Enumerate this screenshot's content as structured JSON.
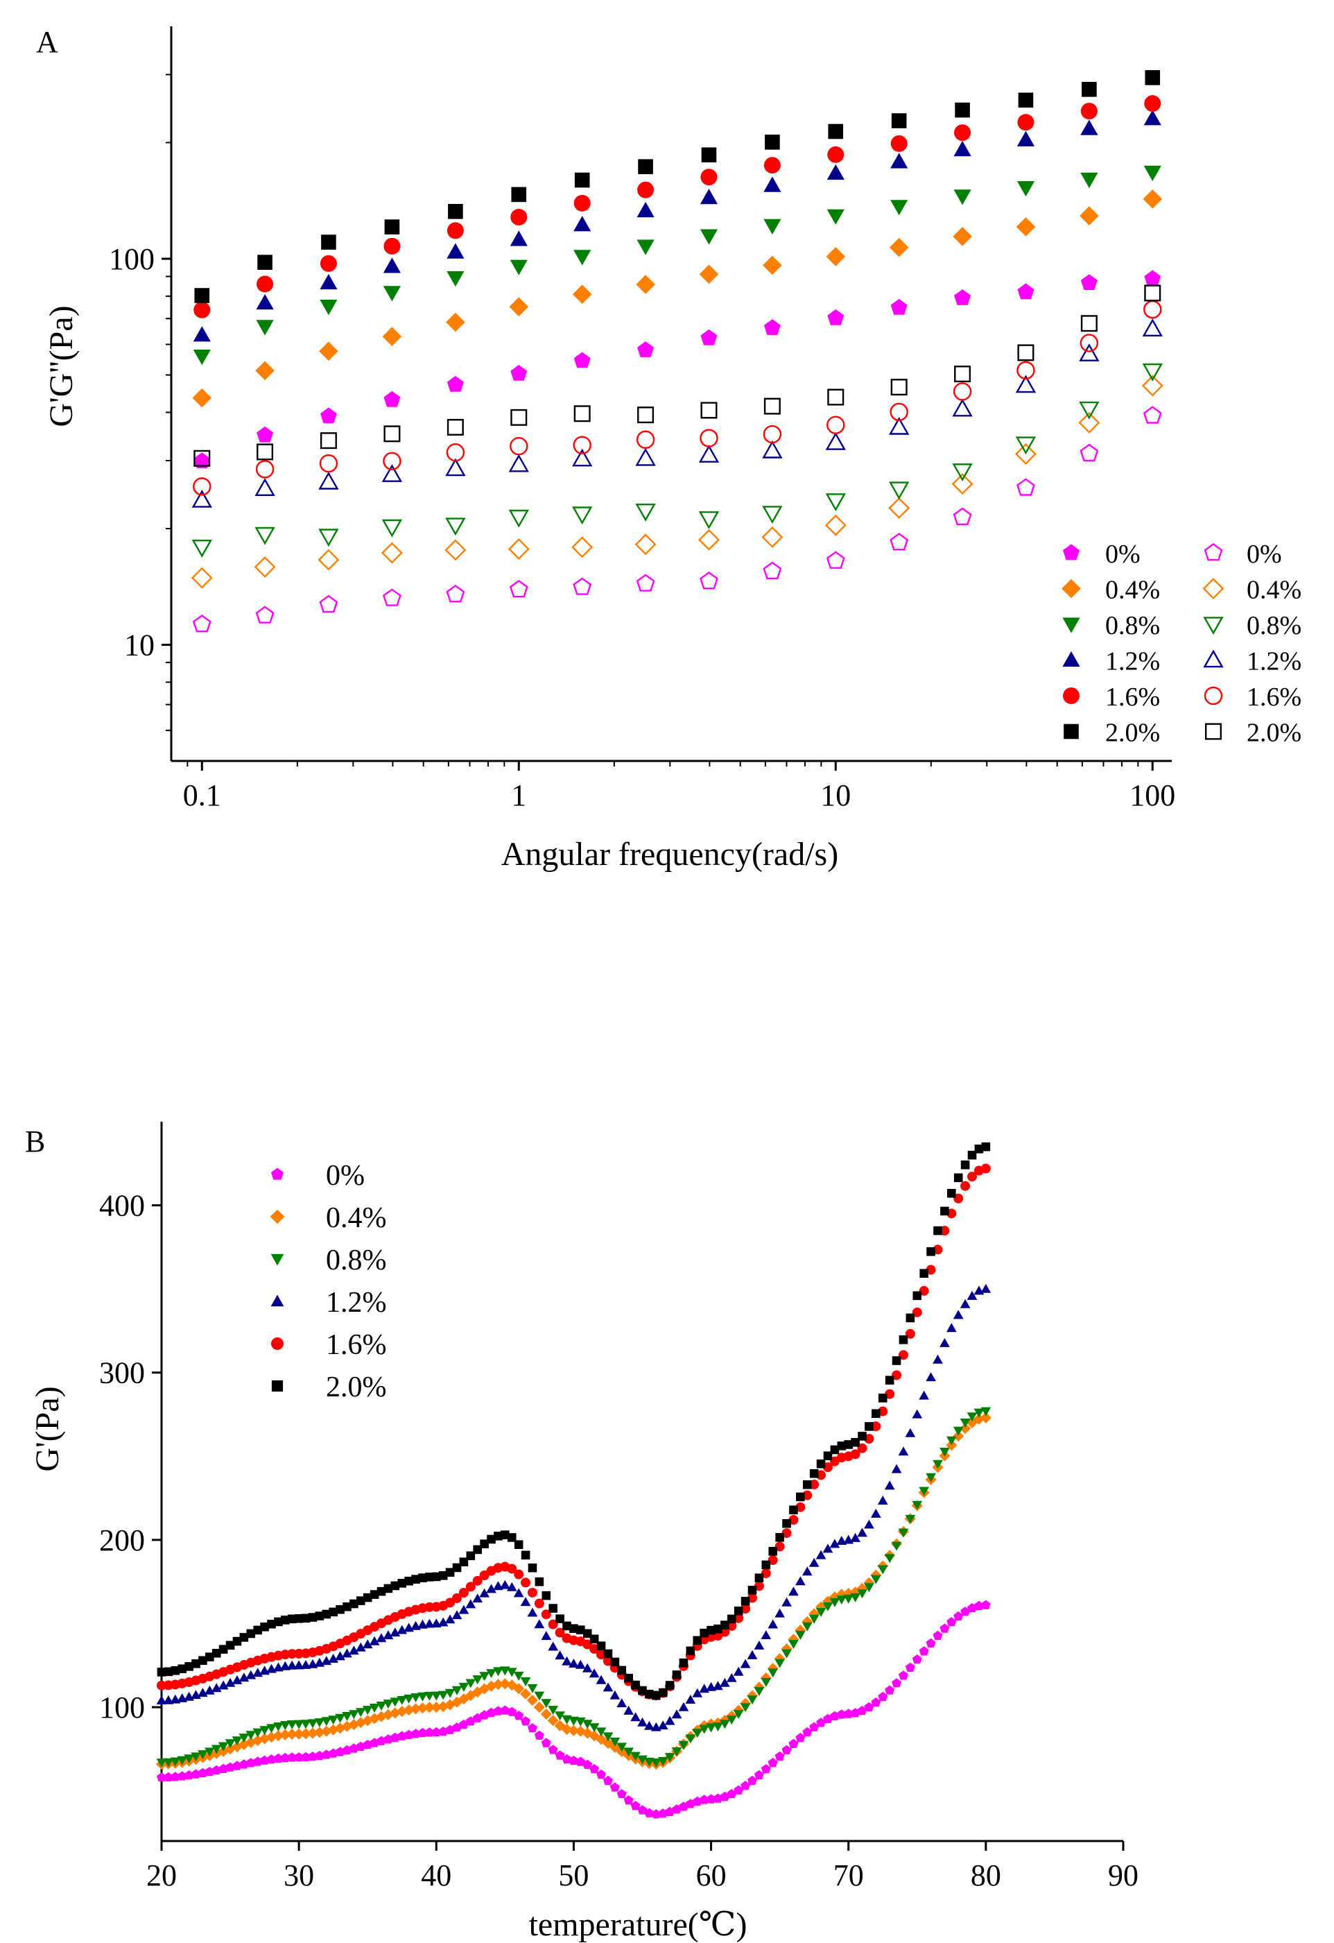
{
  "chart_data": [
    {
      "panel": "A",
      "type": "scatter",
      "xscale": "log",
      "yscale": "log",
      "xlabel": "Angular frequency(rad/s)",
      "ylabel": "G'G''(Pa)",
      "xlim": [
        0.08,
        115
      ],
      "ylim": [
        5,
        400
      ],
      "xticks": [
        0.1,
        1,
        10,
        100
      ],
      "xtick_labels": [
        "0.1",
        "1",
        "10",
        "100"
      ],
      "yticks": [
        10,
        100
      ],
      "ytick_labels": [
        "10",
        "100"
      ],
      "x": [
        0.1,
        0.158,
        0.251,
        0.398,
        0.631,
        1.0,
        1.585,
        2.512,
        3.981,
        6.31,
        10.0,
        15.85,
        25.12,
        39.81,
        63.1,
        100.0
      ],
      "series": [
        {
          "name": "0%",
          "kind": "G'",
          "marker": "pentagon",
          "filled": true,
          "color": "#ff00ff",
          "values": [
            29.9,
            34.9,
            39.1,
            43.1,
            47.2,
            50.4,
            54.4,
            58.0,
            62.3,
            66.2,
            70.2,
            74.7,
            79.1,
            82.0,
            86.6,
            88.7
          ]
        },
        {
          "name": "0.4%",
          "kind": "G'",
          "marker": "diamond",
          "filled": true,
          "color": "#ff8000",
          "values": [
            43.6,
            51.3,
            57.6,
            62.9,
            68.5,
            75.1,
            80.9,
            85.8,
            91.2,
            96.2,
            101.3,
            107.0,
            114.2,
            121.0,
            129.2,
            142.8
          ]
        },
        {
          "name": "0.8%",
          "kind": "G'",
          "marker": "triangle-down",
          "filled": true,
          "color": "#008000",
          "values": [
            55.9,
            66.7,
            75.3,
            81.7,
            89.2,
            95.5,
            101.3,
            107.7,
            114.6,
            121.8,
            129.1,
            136.5,
            145.2,
            152.7,
            160.6,
            167.4
          ]
        },
        {
          "name": "1.2%",
          "kind": "G'",
          "marker": "triangle-up",
          "filled": true,
          "color": "#00008b",
          "values": [
            63.5,
            76.9,
            86.7,
            95.6,
            104.2,
            112.3,
            122.6,
            133.3,
            144.1,
            155.0,
            166.7,
            178.5,
            191.8,
            203.4,
            217.5,
            230.8
          ]
        },
        {
          "name": "1.6%",
          "kind": "G'",
          "marker": "circle",
          "filled": true,
          "color": "#ff0000",
          "values": [
            73.7,
            86.0,
            97.2,
            107.8,
            118.3,
            128.2,
            139.3,
            150.8,
            162.8,
            174.7,
            186.1,
            198.8,
            212.2,
            225.7,
            241.3,
            252.5
          ]
        },
        {
          "name": "2.0%",
          "kind": "G'",
          "marker": "square",
          "filled": true,
          "color": "#000000",
          "values": [
            80.3,
            97.9,
            110.4,
            120.9,
            132.6,
            146.7,
            159.9,
            173.2,
            185.8,
            200.5,
            213.7,
            227.8,
            242.8,
            257.6,
            274.7,
            294.6
          ]
        },
        {
          "name": "0%",
          "kind": "G''",
          "marker": "pentagon",
          "filled": false,
          "color": "#ff00ff",
          "values": [
            11.3,
            11.9,
            12.7,
            13.2,
            13.5,
            13.9,
            14.1,
            14.4,
            14.6,
            15.5,
            16.5,
            18.4,
            21.4,
            25.5,
            31.3,
            39.2
          ]
        },
        {
          "name": "0.4%",
          "kind": "G''",
          "marker": "diamond",
          "filled": false,
          "color": "#ff8000",
          "values": [
            14.9,
            15.9,
            16.6,
            17.3,
            17.6,
            17.7,
            17.9,
            18.2,
            18.7,
            19.0,
            20.4,
            22.6,
            26.1,
            31.2,
            37.6,
            46.9
          ]
        },
        {
          "name": "0.8%",
          "kind": "G''",
          "marker": "triangle-down",
          "filled": false,
          "color": "#008000",
          "values": [
            17.9,
            19.3,
            19.1,
            20.2,
            20.4,
            21.4,
            21.8,
            22.2,
            21.2,
            21.9,
            23.6,
            25.3,
            28.2,
            33.1,
            40.8,
            51.2
          ]
        },
        {
          "name": "1.2%",
          "kind": "G''",
          "marker": "triangle-up",
          "filled": false,
          "color": "#00008b",
          "values": [
            23.7,
            25.4,
            26.4,
            27.6,
            28.6,
            29.3,
            30.3,
            30.4,
            31.0,
            31.8,
            33.4,
            36.6,
            40.8,
            47.0,
            56.7,
            65.8
          ]
        },
        {
          "name": "1.6%",
          "kind": "G''",
          "marker": "circle",
          "filled": false,
          "color": "#ff0000",
          "values": [
            25.7,
            28.5,
            29.5,
            29.9,
            31.5,
            32.7,
            32.9,
            34.0,
            34.3,
            35.1,
            37.1,
            40.1,
            45.3,
            51.4,
            60.5,
            73.9
          ]
        },
        {
          "name": "2.0%",
          "kind": "G''",
          "marker": "square",
          "filled": false,
          "color": "#000000",
          "values": [
            30.4,
            31.6,
            33.8,
            35.2,
            36.6,
            38.8,
            39.7,
            39.4,
            40.5,
            41.5,
            43.8,
            46.5,
            50.3,
            57.1,
            68.0,
            81.5
          ]
        }
      ],
      "legend_placement": "bottom-right, two columns (G' filled, G'' open)"
    },
    {
      "panel": "B",
      "type": "scatter",
      "xlabel": "temperature(℃)",
      "ylabel": "G'(Pa)",
      "xlim": [
        20,
        90
      ],
      "ylim": [
        20,
        450
      ],
      "xticks": [
        20,
        30,
        40,
        50,
        60,
        70,
        80,
        90
      ],
      "xtick_labels": [
        "20",
        "30",
        "40",
        "50",
        "60",
        "70",
        "80",
        "90"
      ],
      "yticks": [
        100,
        200,
        300,
        400
      ],
      "ytick_labels": [
        "100",
        "200",
        "300",
        "400"
      ],
      "x_start": 20,
      "x_end": 80,
      "x_step": 0.5,
      "series": [
        {
          "name": "0%",
          "marker": "pentagon",
          "color": "#ff00ff",
          "anchors": [
            [
              20,
              58
            ],
            [
              30,
              70
            ],
            [
              40,
              85
            ],
            [
              45,
              98
            ],
            [
              50,
              68
            ],
            [
              56,
              36
            ],
            [
              60,
              45
            ],
            [
              70,
              96
            ],
            [
              80,
              161
            ]
          ]
        },
        {
          "name": "0.4%",
          "marker": "diamond",
          "color": "#ff8000",
          "anchors": [
            [
              20,
              66
            ],
            [
              30,
              84
            ],
            [
              40,
              100
            ],
            [
              45,
              114
            ],
            [
              50,
              86
            ],
            [
              56,
              66
            ],
            [
              60,
              90
            ],
            [
              70,
              168
            ],
            [
              80,
              273
            ]
          ]
        },
        {
          "name": "0.8%",
          "marker": "triangle-down",
          "color": "#008000",
          "anchors": [
            [
              20,
              67
            ],
            [
              30,
              90
            ],
            [
              40,
              107
            ],
            [
              45,
              122
            ],
            [
              50,
              92
            ],
            [
              56,
              67
            ],
            [
              60,
              88
            ],
            [
              70,
              165
            ],
            [
              80,
              277
            ]
          ]
        },
        {
          "name": "1.2%",
          "marker": "triangle-up",
          "color": "#00008b",
          "anchors": [
            [
              20,
              104
            ],
            [
              30,
              125
            ],
            [
              40,
              150
            ],
            [
              45,
              173
            ],
            [
              50,
              126
            ],
            [
              56,
              88
            ],
            [
              60,
              112
            ],
            [
              70,
              200
            ],
            [
              80,
              350
            ]
          ]
        },
        {
          "name": "1.6%",
          "marker": "circle",
          "color": "#ff0000",
          "anchors": [
            [
              20,
              113
            ],
            [
              30,
              132
            ],
            [
              40,
              160
            ],
            [
              45,
              184
            ],
            [
              50,
              140
            ],
            [
              56,
              107
            ],
            [
              60,
              142
            ],
            [
              70,
              250
            ],
            [
              80,
              422
            ]
          ]
        },
        {
          "name": "2.0%",
          "marker": "square",
          "color": "#000000",
          "anchors": [
            [
              20,
              121
            ],
            [
              30,
              153
            ],
            [
              40,
              178
            ],
            [
              45,
              203
            ],
            [
              50,
              147
            ],
            [
              56,
              107
            ],
            [
              60,
              146
            ],
            [
              70,
              257
            ],
            [
              80,
              435
            ]
          ]
        }
      ],
      "legend_placement": "top-left"
    }
  ],
  "panel_labels": [
    "A",
    "B"
  ]
}
